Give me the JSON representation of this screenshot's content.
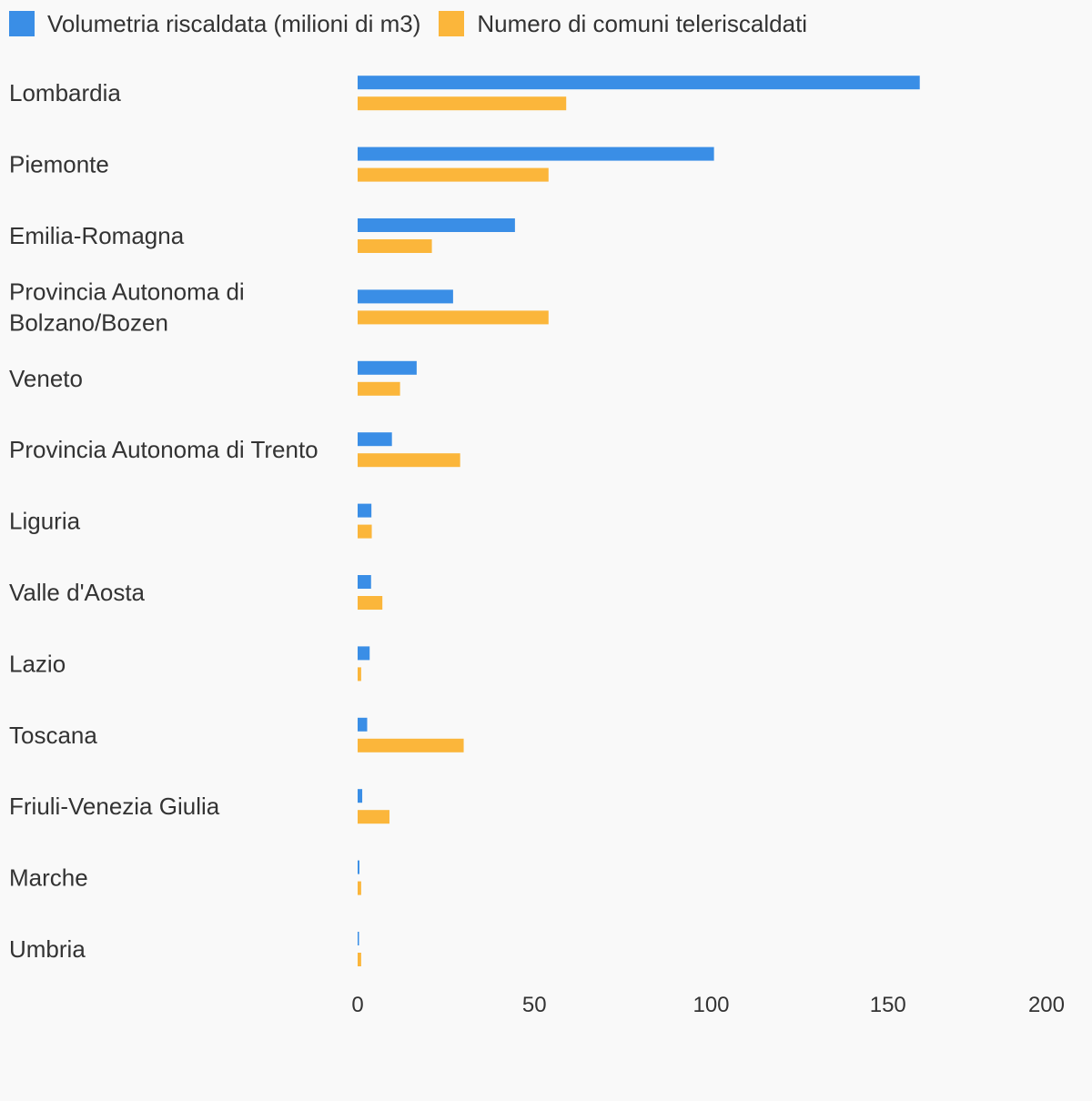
{
  "colors": {
    "background": "#f9f9f9",
    "text": "#333333",
    "series_1": "#3a8ee6",
    "series_2": "#fbb63b"
  },
  "legend": {
    "series_1": "Volumetria riscaldata (milioni di m3)",
    "series_2": "Numero di comuni teleriscaldati"
  },
  "chart_data": {
    "type": "bar",
    "orientation": "horizontal",
    "categories": [
      "Lombardia",
      "Piemonte",
      "Emilia-Romagna",
      "Provincia Autonoma di Bolzano/Bozen",
      "Veneto",
      "Provincia Autonoma di Trento",
      "Liguria",
      "Valle d'Aosta",
      "Lazio",
      "Toscana",
      "Friuli-Venezia Giulia",
      "Marche",
      "Umbria"
    ],
    "series": [
      {
        "name": "Volumetria riscaldata (milioni di m3)",
        "color": "#3a8ee6",
        "values": [
          159,
          100.8,
          44.5,
          27,
          16.7,
          9.7,
          3.9,
          3.8,
          3.4,
          2.7,
          1.3,
          0.5,
          0.2
        ]
      },
      {
        "name": "Numero di comuni teleriscaldati",
        "color": "#fbb63b",
        "values": [
          59,
          54,
          21,
          54,
          12,
          29,
          4,
          7,
          1,
          30,
          9,
          1,
          1
        ]
      }
    ],
    "xlim": [
      0,
      200
    ],
    "xticks": [
      0,
      50,
      100,
      150,
      200
    ],
    "grid": false,
    "legend_position": "top-left"
  }
}
